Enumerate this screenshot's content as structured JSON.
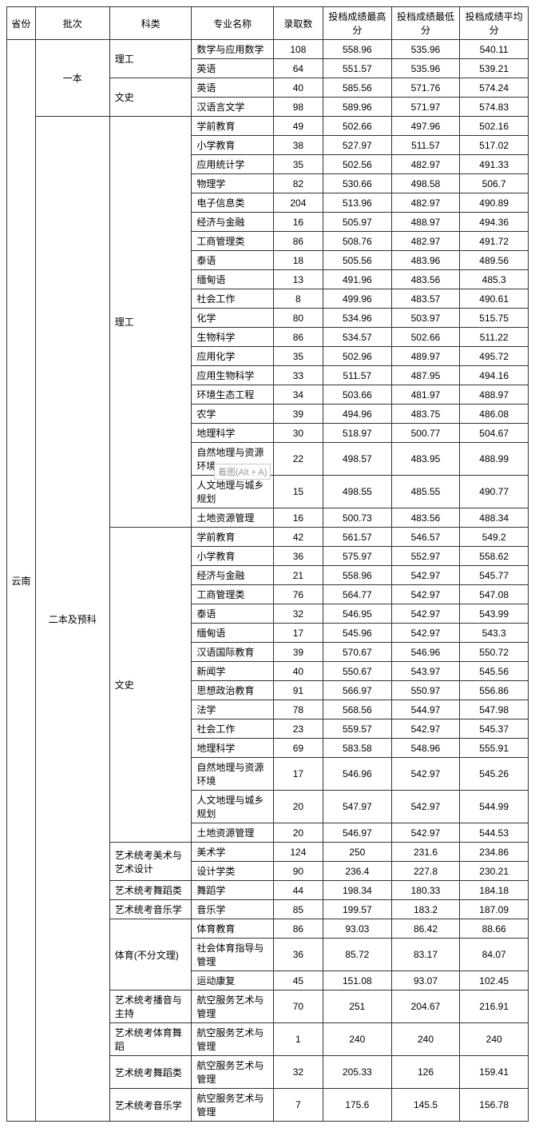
{
  "headers": {
    "province": "省份",
    "batch": "批次",
    "category": "科类",
    "major": "专业名称",
    "count": "录取数",
    "max": "投档成绩最高分",
    "min": "投档成绩最低分",
    "avg": "投档成绩平均分"
  },
  "watermark": "着图(Alt + A)",
  "province": "云南",
  "batches": [
    {
      "name": "一本",
      "categories": [
        {
          "name": "理工",
          "majors": [
            {
              "name": "数学与应用数学",
              "count": 108,
              "max": "558.96",
              "min": "535.96",
              "avg": "540.11"
            },
            {
              "name": "英语",
              "count": 64,
              "max": "551.57",
              "min": "535.96",
              "avg": "539.21"
            }
          ]
        },
        {
          "name": "文史",
          "majors": [
            {
              "name": "英语",
              "count": 40,
              "max": "585.56",
              "min": "571.76",
              "avg": "574.24"
            },
            {
              "name": "汉语言文学",
              "count": 98,
              "max": "589.96",
              "min": "571.97",
              "avg": "574.83"
            }
          ]
        }
      ]
    },
    {
      "name": "二本及预科",
      "categories": [
        {
          "name": "理工",
          "majors": [
            {
              "name": "学前教育",
              "count": 49,
              "max": "502.66",
              "min": "497.96",
              "avg": "502.16"
            },
            {
              "name": "小学教育",
              "count": 38,
              "max": "527.97",
              "min": "511.57",
              "avg": "517.02"
            },
            {
              "name": "应用统计学",
              "count": 35,
              "max": "502.56",
              "min": "482.97",
              "avg": "491.33"
            },
            {
              "name": "物理学",
              "count": 82,
              "max": "530.66",
              "min": "498.58",
              "avg": "506.7"
            },
            {
              "name": "电子信息类",
              "count": 204,
              "max": "513.96",
              "min": "482.97",
              "avg": "490.89"
            },
            {
              "name": "经济与金融",
              "count": 16,
              "max": "505.97",
              "min": "488.97",
              "avg": "494.36"
            },
            {
              "name": "工商管理类",
              "count": 86,
              "max": "508.76",
              "min": "482.97",
              "avg": "491.72"
            },
            {
              "name": "泰语",
              "count": 18,
              "max": "505.56",
              "min": "483.96",
              "avg": "489.56"
            },
            {
              "name": "缅甸语",
              "count": 13,
              "max": "491.96",
              "min": "483.56",
              "avg": "485.3"
            },
            {
              "name": "社会工作",
              "count": 8,
              "max": "499.96",
              "min": "483.57",
              "avg": "490.61"
            },
            {
              "name": "化学",
              "count": 80,
              "max": "534.96",
              "min": "503.97",
              "avg": "515.75"
            },
            {
              "name": "生物科学",
              "count": 86,
              "max": "534.57",
              "min": "502.66",
              "avg": "511.22"
            },
            {
              "name": "应用化学",
              "count": 35,
              "max": "502.96",
              "min": "489.97",
              "avg": "495.72"
            },
            {
              "name": "应用生物科学",
              "count": 33,
              "max": "511.57",
              "min": "487.95",
              "avg": "494.16"
            },
            {
              "name": "环境生态工程",
              "count": 34,
              "max": "503.66",
              "min": "481.97",
              "avg": "488.97"
            },
            {
              "name": "农学",
              "count": 39,
              "max": "494.96",
              "min": "483.75",
              "avg": "486.08"
            },
            {
              "name": "地理科学",
              "count": 30,
              "max": "518.97",
              "min": "500.77",
              "avg": "504.67"
            },
            {
              "name": "自然地理与资源环境",
              "count": 22,
              "max": "498.57",
              "min": "483.95",
              "avg": "488.99"
            },
            {
              "name": "人文地理与城乡规划",
              "count": 15,
              "max": "498.55",
              "min": "485.55",
              "avg": "490.77"
            },
            {
              "name": "土地资源管理",
              "count": 16,
              "max": "500.73",
              "min": "483.56",
              "avg": "488.34"
            }
          ]
        },
        {
          "name": "文史",
          "majors": [
            {
              "name": "学前教育",
              "count": 42,
              "max": "561.57",
              "min": "546.57",
              "avg": "549.2"
            },
            {
              "name": "小学教育",
              "count": 36,
              "max": "575.97",
              "min": "552.97",
              "avg": "558.62"
            },
            {
              "name": "经济与金融",
              "count": 21,
              "max": "558.96",
              "min": "542.97",
              "avg": "545.77"
            },
            {
              "name": "工商管理类",
              "count": 76,
              "max": "564.77",
              "min": "542.97",
              "avg": "547.08"
            },
            {
              "name": "泰语",
              "count": 32,
              "max": "546.95",
              "min": "542.97",
              "avg": "543.99"
            },
            {
              "name": "缅甸语",
              "count": 17,
              "max": "545.96",
              "min": "542.97",
              "avg": "543.3"
            },
            {
              "name": "汉语国际教育",
              "count": 39,
              "max": "570.67",
              "min": "546.96",
              "avg": "550.72"
            },
            {
              "name": "新闻学",
              "count": 40,
              "max": "550.67",
              "min": "543.97",
              "avg": "545.56"
            },
            {
              "name": "思想政治教育",
              "count": 91,
              "max": "566.97",
              "min": "550.97",
              "avg": "556.86"
            },
            {
              "name": "法学",
              "count": 78,
              "max": "568.56",
              "min": "544.97",
              "avg": "547.98"
            },
            {
              "name": "社会工作",
              "count": 23,
              "max": "559.57",
              "min": "542.97",
              "avg": "545.37"
            },
            {
              "name": "地理科学",
              "count": 69,
              "max": "583.58",
              "min": "548.96",
              "avg": "555.91"
            },
            {
              "name": "自然地理与资源环境",
              "count": 17,
              "max": "546.96",
              "min": "542.97",
              "avg": "545.26"
            },
            {
              "name": "人文地理与城乡规划",
              "count": 20,
              "max": "547.97",
              "min": "542.97",
              "avg": "544.99"
            },
            {
              "name": "土地资源管理",
              "count": 20,
              "max": "546.97",
              "min": "542.97",
              "avg": "544.53"
            }
          ]
        },
        {
          "name": "艺术统考美术与艺术设计",
          "majors": [
            {
              "name": "美术学",
              "count": 124,
              "max": "250",
              "min": "231.6",
              "avg": "234.86"
            },
            {
              "name": "设计学类",
              "count": 90,
              "max": "236.4",
              "min": "227.8",
              "avg": "230.21"
            }
          ]
        },
        {
          "name": "艺术统考舞蹈类",
          "majors": [
            {
              "name": "舞蹈学",
              "count": 44,
              "max": "198.34",
              "min": "180.33",
              "avg": "184.18"
            }
          ]
        },
        {
          "name": "艺术统考音乐学",
          "majors": [
            {
              "name": "音乐学",
              "count": 85,
              "max": "199.57",
              "min": "183.2",
              "avg": "187.09"
            }
          ]
        },
        {
          "name": "体育(不分文理)",
          "majors": [
            {
              "name": "体育教育",
              "count": 86,
              "max": "93.03",
              "min": "86.42",
              "avg": "88.66"
            },
            {
              "name": "社会体育指导与管理",
              "count": 36,
              "max": "85.72",
              "min": "83.17",
              "avg": "84.07"
            },
            {
              "name": "运动康复",
              "count": 45,
              "max": "151.08",
              "min": "93.07",
              "avg": "102.45"
            }
          ]
        },
        {
          "name": "艺术统考播音与主持",
          "majors": [
            {
              "name": "航空服务艺术与管理",
              "count": 70,
              "max": "251",
              "min": "204.67",
              "avg": "216.91"
            }
          ]
        },
        {
          "name": "艺术统考体育舞蹈",
          "majors": [
            {
              "name": "航空服务艺术与管理",
              "count": 1,
              "max": "240",
              "min": "240",
              "avg": "240"
            }
          ]
        },
        {
          "name": "艺术统考舞蹈类",
          "majors": [
            {
              "name": "航空服务艺术与管理",
              "count": 32,
              "max": "205.33",
              "min": "126",
              "avg": "159.41"
            }
          ]
        },
        {
          "name": "艺术统考音乐学",
          "majors": [
            {
              "name": "航空服务艺术与管理",
              "count": 7,
              "max": "175.6",
              "min": "145.5",
              "avg": "156.78"
            }
          ]
        }
      ]
    }
  ]
}
